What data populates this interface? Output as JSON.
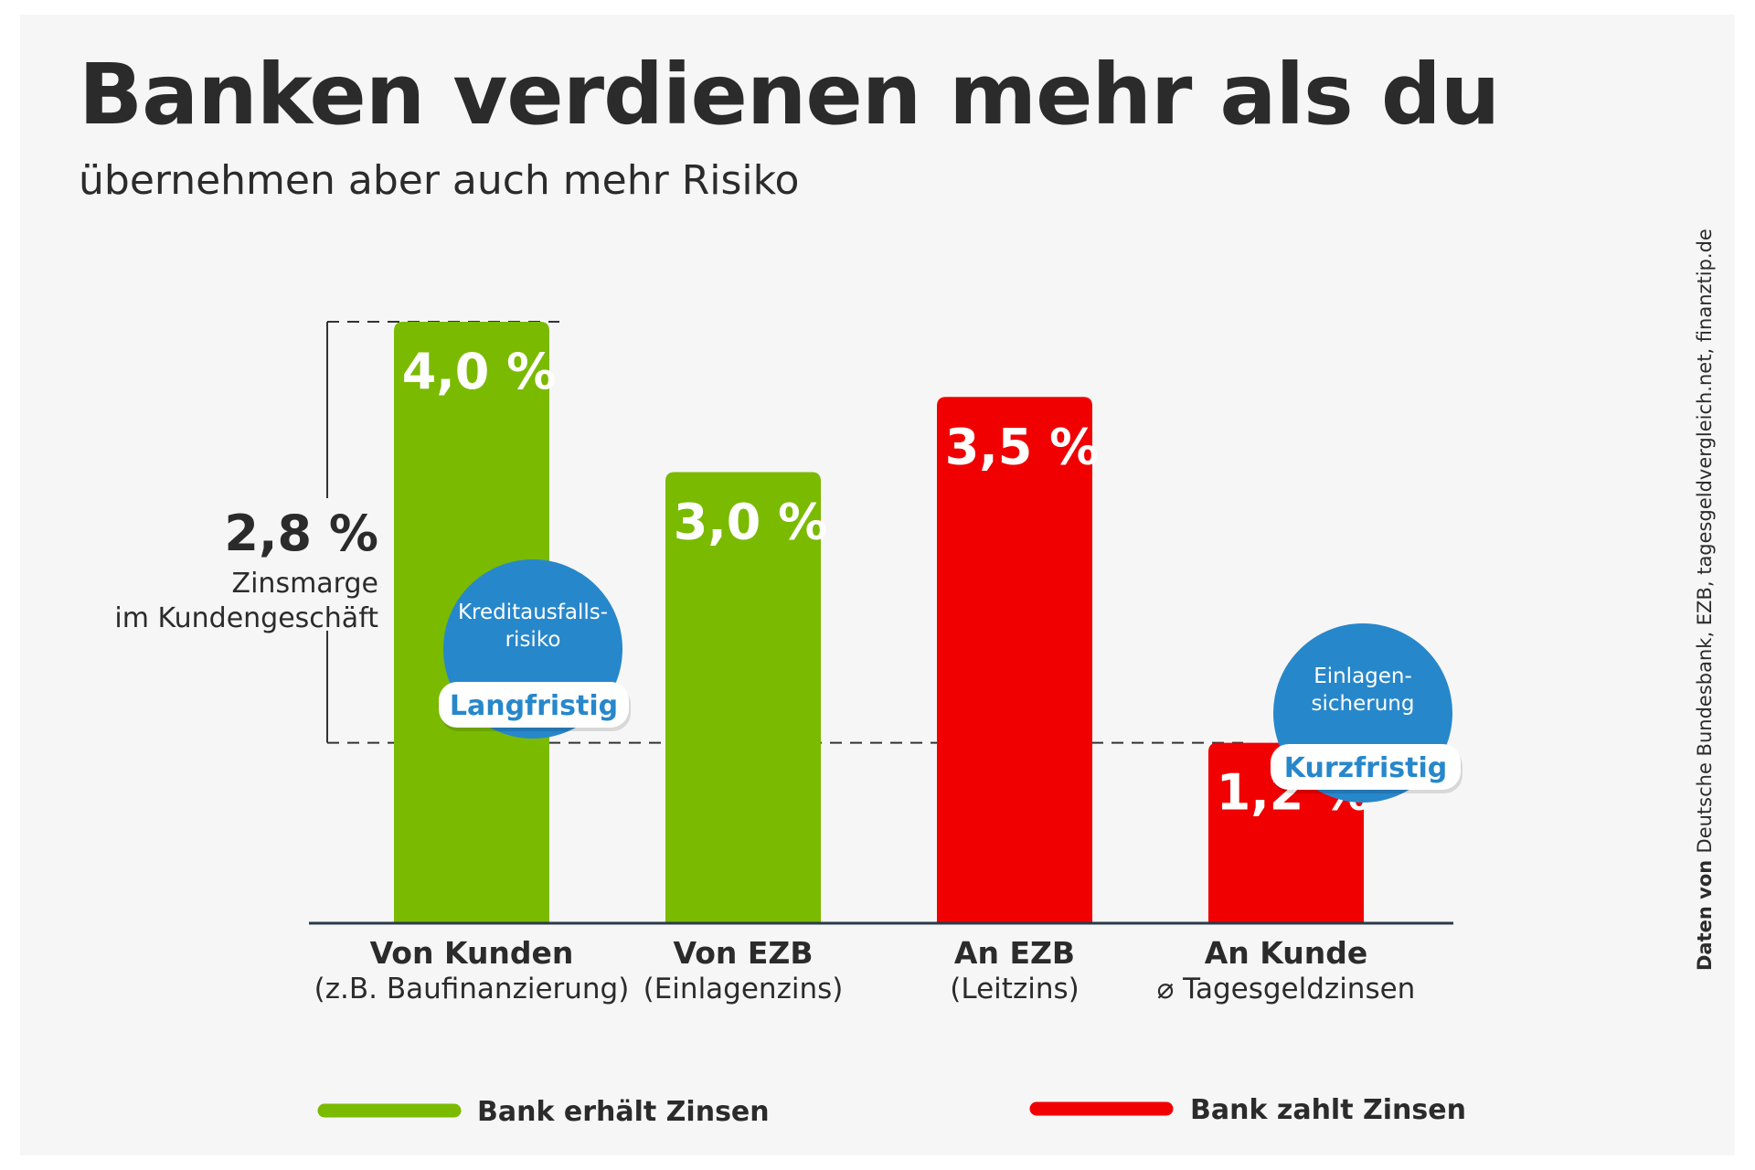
{
  "title": "Banken verdienen mehr als du",
  "subtitle": "übernehmen aber auch mehr Risiko",
  "chart_data": {
    "type": "bar",
    "categories": [
      {
        "name": "Von Kunden",
        "sub": "(z.B. Baufinanzierung)",
        "series": "received"
      },
      {
        "name": "Von EZB",
        "sub": "(Einlagenzins)",
        "series": "received"
      },
      {
        "name": "An EZB",
        "sub": "(Leitzins)",
        "series": "paid"
      },
      {
        "name": "An Kunde",
        "sub": "⌀ Tagesgeldzinsen",
        "series": "paid"
      }
    ],
    "values": [
      4.0,
      3.0,
      3.5,
      1.2
    ],
    "value_labels": [
      "4,0 %",
      "3,0 %",
      "3,5 %",
      "1,2 %"
    ],
    "ylim": [
      0,
      4.0
    ],
    "grid": false,
    "series": [
      {
        "key": "received",
        "name": "Bank erhält Zinsen",
        "color": "#7aba00"
      },
      {
        "key": "paid",
        "name": "Bank zahlt Zinsen",
        "color": "#f00000"
      }
    ],
    "legend_position": "bottom",
    "annotations": {
      "margin": {
        "value": "2,8 %",
        "line1": "Zinsmarge",
        "line2": "im Kundengeschäft",
        "from": 1.2,
        "to": 4.0
      },
      "bubbles": [
        {
          "category_index": 0,
          "line1": "Kreditausfalls-",
          "line2": "risiko",
          "pill": "Langfristig"
        },
        {
          "category_index": 3,
          "line1": "Einlagen-",
          "line2": "sicherung",
          "pill": "Kurzfristig"
        }
      ]
    }
  },
  "source": {
    "prefix": "Daten von",
    "text": "Deutsche Bundesbank, EZB, tagesgeldvergleich.net, finanztip.de"
  },
  "colors": {
    "bubble": "#2787cb",
    "text": "#2b2b2b",
    "background": "#f6f6f6"
  }
}
